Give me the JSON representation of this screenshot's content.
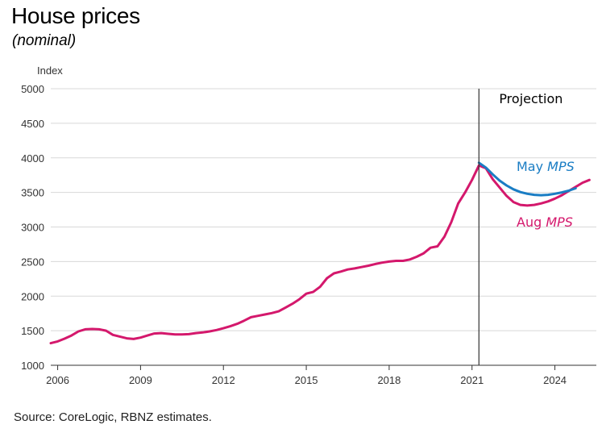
{
  "title": "House prices",
  "subtitle": "(nominal)",
  "source": "Source: CoreLogic, RBNZ estimates.",
  "chart_data": {
    "type": "line",
    "ylabel": "Index",
    "ylim": [
      1000,
      5000
    ],
    "yticks": [
      1000,
      1500,
      2000,
      2500,
      3000,
      3500,
      4000,
      4500,
      5000
    ],
    "xlim": [
      2005.75,
      2025.5
    ],
    "xticks": [
      2006,
      2009,
      2012,
      2015,
      2018,
      2021,
      2024
    ],
    "grid": "horizontal",
    "projection_start": 2021.25,
    "projection_label": "Projection",
    "colors": {
      "may": "#1a7dc4",
      "aug": "#d4186c",
      "divider": "#333333",
      "grid": "#d8d8d8"
    },
    "series": [
      {
        "name": "Aug MPS",
        "label_prefix": "Aug ",
        "label_italic": "MPS",
        "color": "#d4186c",
        "x": [
          2005.75,
          2006.0,
          2006.25,
          2006.5,
          2006.75,
          2007.0,
          2007.25,
          2007.5,
          2007.75,
          2008.0,
          2008.25,
          2008.5,
          2008.75,
          2009.0,
          2009.25,
          2009.5,
          2009.75,
          2010.0,
          2010.25,
          2010.5,
          2010.75,
          2011.0,
          2011.25,
          2011.5,
          2011.75,
          2012.0,
          2012.25,
          2012.5,
          2012.75,
          2013.0,
          2013.25,
          2013.5,
          2013.75,
          2014.0,
          2014.25,
          2014.5,
          2014.75,
          2015.0,
          2015.25,
          2015.5,
          2015.75,
          2016.0,
          2016.25,
          2016.5,
          2016.75,
          2017.0,
          2017.25,
          2017.5,
          2017.75,
          2018.0,
          2018.25,
          2018.5,
          2018.75,
          2019.0,
          2019.25,
          2019.5,
          2019.75,
          2020.0,
          2020.25,
          2020.5,
          2020.75,
          2021.0,
          2021.25,
          2021.5,
          2021.75,
          2022.0,
          2022.25,
          2022.5,
          2022.75,
          2023.0,
          2023.25,
          2023.5,
          2023.75,
          2024.0,
          2024.25,
          2024.5,
          2024.75,
          2025.0,
          2025.25
        ],
        "values": [
          1320,
          1345,
          1385,
          1430,
          1490,
          1520,
          1525,
          1520,
          1500,
          1440,
          1415,
          1390,
          1380,
          1400,
          1430,
          1460,
          1465,
          1455,
          1445,
          1445,
          1450,
          1465,
          1475,
          1490,
          1510,
          1535,
          1565,
          1600,
          1645,
          1695,
          1715,
          1735,
          1755,
          1780,
          1835,
          1890,
          1955,
          2035,
          2060,
          2135,
          2260,
          2330,
          2355,
          2385,
          2400,
          2420,
          2440,
          2465,
          2485,
          2500,
          2510,
          2510,
          2530,
          2570,
          2620,
          2700,
          2720,
          2860,
          3070,
          3340,
          3500,
          3680,
          3890,
          3850,
          3690,
          3570,
          3450,
          3360,
          3320,
          3310,
          3320,
          3340,
          3370,
          3410,
          3460,
          3520,
          3580,
          3640,
          3680
        ]
      },
      {
        "name": "May MPS",
        "label_prefix": "May ",
        "label_italic": "MPS",
        "color": "#1a7dc4",
        "x": [
          2021.25,
          2021.5,
          2021.75,
          2022.0,
          2022.25,
          2022.5,
          2022.75,
          2023.0,
          2023.25,
          2023.5,
          2023.75,
          2024.0,
          2024.25,
          2024.5,
          2024.75
        ],
        "values": [
          3930,
          3860,
          3760,
          3670,
          3600,
          3545,
          3505,
          3480,
          3465,
          3460,
          3465,
          3480,
          3500,
          3525,
          3560
        ]
      }
    ]
  }
}
